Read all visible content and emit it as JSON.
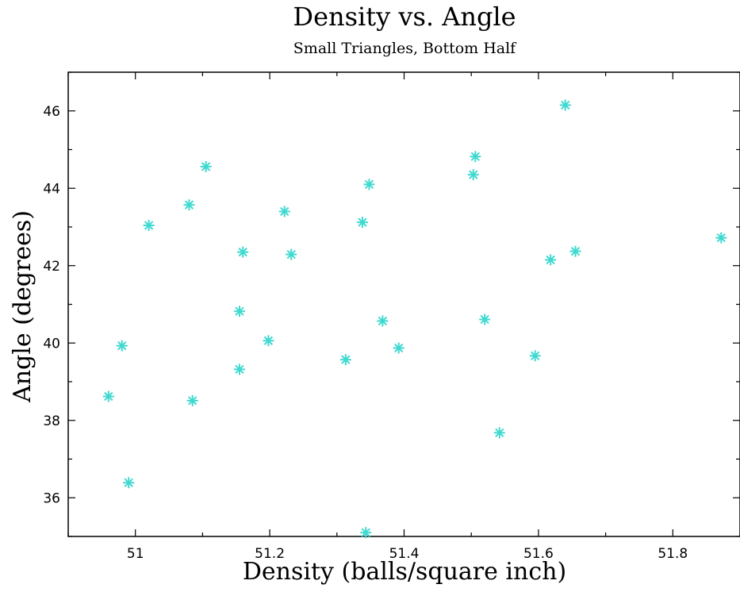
{
  "chart_data": {
    "type": "scatter",
    "title": "Density vs. Angle",
    "subtitle": "Small Triangles, Bottom Half",
    "xlabel": "Density (balls/square inch)",
    "ylabel": "Angle (degrees)",
    "xlim": [
      50.9,
      51.9
    ],
    "ylim": [
      35,
      47
    ],
    "xticks": [
      51,
      51.2,
      51.4,
      51.6,
      51.8
    ],
    "xtick_labels": [
      "51",
      "51.2",
      "51.4",
      "51.6",
      "51.8"
    ],
    "yticks": [
      36,
      38,
      40,
      42,
      44,
      46
    ],
    "ytick_labels": [
      "36",
      "38",
      "40",
      "42",
      "44",
      "46"
    ],
    "grid": false,
    "marker": "asterisk",
    "marker_color": "#3fd9d0",
    "series": [
      {
        "x": [
          50.96,
          50.98,
          50.99,
          51.02,
          51.08,
          51.085,
          51.105,
          51.155,
          51.155,
          51.16,
          51.198,
          51.222,
          51.232,
          51.313,
          51.338,
          51.343,
          51.348,
          51.368,
          51.392,
          51.503,
          51.506,
          51.52,
          51.542,
          51.595,
          51.618,
          51.64,
          51.655,
          51.872
        ],
        "y": [
          38.62,
          39.93,
          36.39,
          43.04,
          43.57,
          38.51,
          44.56,
          39.32,
          40.82,
          42.35,
          40.06,
          43.4,
          42.29,
          39.57,
          43.12,
          35.1,
          44.1,
          40.57,
          39.87,
          44.35,
          44.82,
          40.61,
          37.68,
          39.67,
          42.15,
          46.15,
          42.37,
          42.72
        ]
      }
    ]
  }
}
